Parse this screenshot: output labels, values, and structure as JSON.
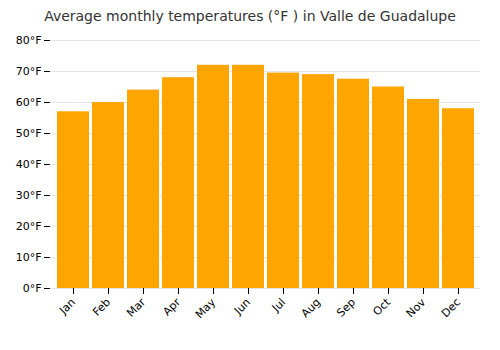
{
  "chart_data": {
    "type": "bar",
    "title": "Average monthly temperatures (°F ) in Valle de Guadalupe",
    "categories": [
      "Jan",
      "Feb",
      "Mar",
      "Apr",
      "May",
      "Jun",
      "Jul",
      "Aug",
      "Sep",
      "Oct",
      "Nov",
      "Dec"
    ],
    "values": [
      57,
      60,
      64,
      68,
      72,
      72,
      69.5,
      69,
      67.5,
      65,
      61,
      58
    ],
    "color": "#FFA500",
    "ylim": [
      0,
      80
    ],
    "yticks": [
      {
        "value": 0,
        "label": "0°F"
      },
      {
        "value": 10,
        "label": "10°F"
      },
      {
        "value": 20,
        "label": "20°F"
      },
      {
        "value": 30,
        "label": "30°F"
      },
      {
        "value": 40,
        "label": "40°F"
      },
      {
        "value": 50,
        "label": "50°F"
      },
      {
        "value": 60,
        "label": "60°F"
      },
      {
        "value": 70,
        "label": "70°F"
      },
      {
        "value": 80,
        "label": "80°F"
      }
    ],
    "grid": true
  }
}
